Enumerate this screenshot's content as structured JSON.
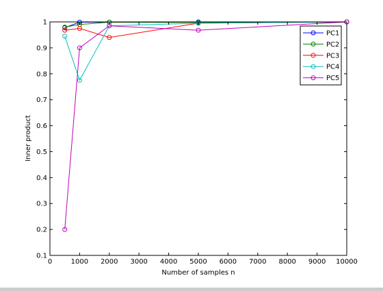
{
  "chart_data": {
    "type": "line",
    "title": "",
    "xlabel": "Number of samples n",
    "ylabel": "Inner product",
    "xlim": [
      0,
      10000
    ],
    "ylim": [
      0.1,
      1.0
    ],
    "xticks": [
      0,
      1000,
      2000,
      3000,
      4000,
      5000,
      6000,
      7000,
      8000,
      9000,
      10000
    ],
    "yticks": [
      0.1,
      0.2,
      0.3,
      0.4,
      0.5,
      0.6,
      0.7,
      0.8,
      0.9,
      1
    ],
    "x": [
      500,
      1000,
      2000,
      5000,
      10000
    ],
    "grid": false,
    "legend_position": "top-right",
    "series": [
      {
        "name": "PC1",
        "color": "#0000ff",
        "values": [
          0.978,
          0.999,
          0.999,
          1.0,
          1.0
        ]
      },
      {
        "name": "PC2",
        "color": "#008000",
        "values": [
          0.98,
          0.99,
          0.999,
          0.998,
          1.0
        ]
      },
      {
        "name": "PC3",
        "color": "#ff0000",
        "values": [
          0.968,
          0.975,
          0.94,
          0.995,
          1.0
        ]
      },
      {
        "name": "PC4",
        "color": "#00bfbf",
        "values": [
          0.945,
          0.775,
          0.985,
          0.995,
          1.0
        ]
      },
      {
        "name": "PC5",
        "color": "#bf00bf",
        "values": [
          0.2,
          0.9,
          0.985,
          0.968,
          1.0
        ]
      }
    ]
  }
}
